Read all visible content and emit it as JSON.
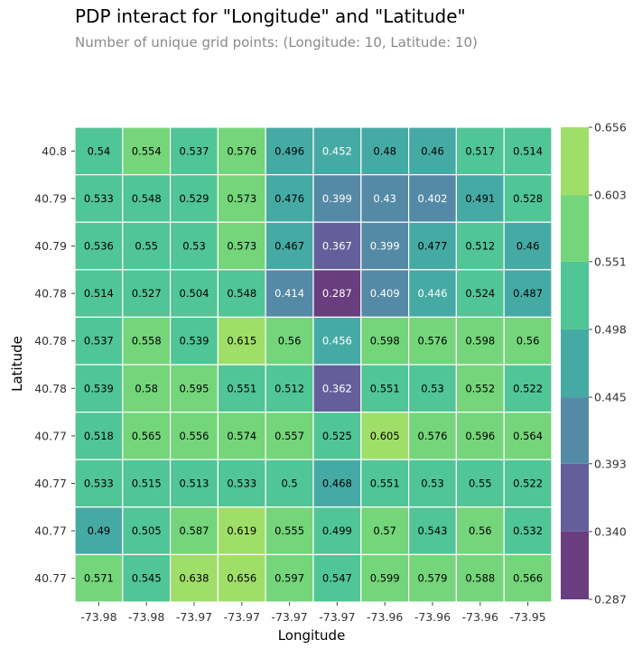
{
  "title": "PDP interact for \"Longitude\" and \"Latitude\"",
  "subtitle": "Number of unique grid points: (Longitude: 10, Latitude: 10)",
  "chart_data": {
    "type": "heatmap",
    "xlabel": "Longitude",
    "ylabel": "Latitude",
    "x_ticks": [
      "-73.98",
      "-73.98",
      "-73.97",
      "-73.97",
      "-73.97",
      "-73.97",
      "-73.96",
      "-73.96",
      "-73.96",
      "-73.95"
    ],
    "y_ticks": [
      "40.8",
      "40.79",
      "40.79",
      "40.78",
      "40.78",
      "40.78",
      "40.77",
      "40.77",
      "40.77",
      "40.77"
    ],
    "values": [
      [
        "0.54",
        "0.554",
        "0.537",
        "0.576",
        "0.496",
        "0.452",
        "0.48",
        "0.46",
        "0.517",
        "0.514"
      ],
      [
        "0.533",
        "0.548",
        "0.529",
        "0.573",
        "0.476",
        "0.399",
        "0.43",
        "0.402",
        "0.491",
        "0.528"
      ],
      [
        "0.536",
        "0.55",
        "0.53",
        "0.573",
        "0.467",
        "0.367",
        "0.399",
        "0.477",
        "0.512",
        "0.46"
      ],
      [
        "0.514",
        "0.527",
        "0.504",
        "0.548",
        "0.414",
        "0.287",
        "0.409",
        "0.446",
        "0.524",
        "0.487"
      ],
      [
        "0.537",
        "0.558",
        "0.539",
        "0.615",
        "0.56",
        "0.456",
        "0.598",
        "0.576",
        "0.598",
        "0.56"
      ],
      [
        "0.539",
        "0.58",
        "0.595",
        "0.551",
        "0.512",
        "0.362",
        "0.551",
        "0.53",
        "0.552",
        "0.522"
      ],
      [
        "0.518",
        "0.565",
        "0.556",
        "0.574",
        "0.557",
        "0.525",
        "0.605",
        "0.576",
        "0.596",
        "0.564"
      ],
      [
        "0.533",
        "0.515",
        "0.513",
        "0.533",
        "0.5",
        "0.468",
        "0.551",
        "0.53",
        "0.55",
        "0.522"
      ],
      [
        "0.49",
        "0.505",
        "0.587",
        "0.619",
        "0.555",
        "0.499",
        "0.57",
        "0.543",
        "0.56",
        "0.532"
      ],
      [
        "0.571",
        "0.545",
        "0.638",
        "0.656",
        "0.597",
        "0.547",
        "0.599",
        "0.579",
        "0.588",
        "0.566"
      ]
    ],
    "colorbar": {
      "ticks": [
        "0.287",
        "0.340",
        "0.393",
        "0.445",
        "0.498",
        "0.551",
        "0.603",
        "0.656"
      ],
      "colors": [
        "#6a3d7e",
        "#645f9a",
        "#558aa6",
        "#46aaa4",
        "#50c595",
        "#74d57a",
        "#9fde69",
        "#dee441"
      ]
    }
  }
}
